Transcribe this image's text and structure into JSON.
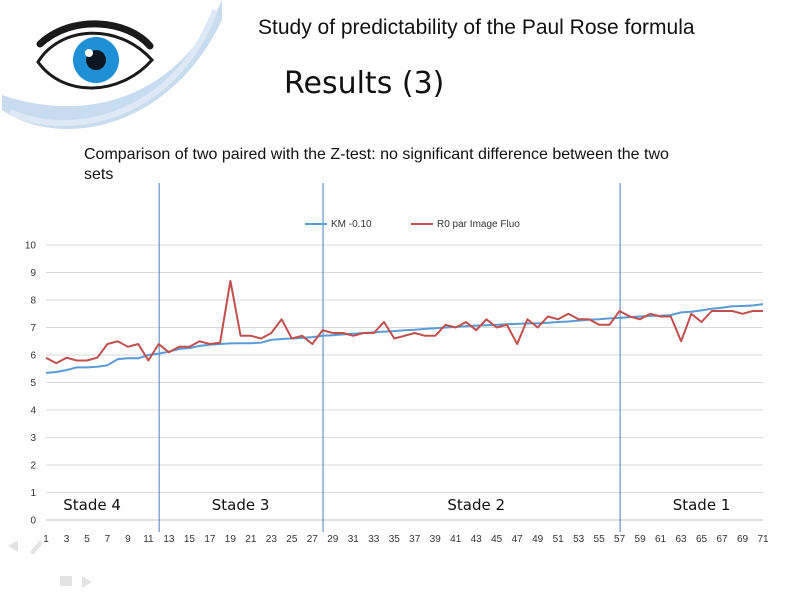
{
  "slide": {
    "header_title": "Study of predictability of the Paul Rose formula",
    "subtitle": "Results (3)",
    "comparison_text": "Comparison of two paired with the Z-test: no significant difference between the two sets"
  },
  "colors": {
    "series_km": "#5b9bd5",
    "series_r0": "#c0504d",
    "stage_divider": "#4a7ebb",
    "eye_iris": "#1f8fd6",
    "swoosh": "#c7dcef"
  },
  "icons": [
    "eye-logo-icon",
    "nav-prev-icon",
    "nav-pen-icon",
    "nav-menu-icon",
    "nav-next-icon"
  ],
  "chart_data": {
    "type": "line",
    "title": "",
    "xlabel": "",
    "ylabel": "",
    "ylim": [
      0,
      10
    ],
    "y_ticks": [
      0,
      1,
      2,
      3,
      4,
      5,
      6,
      7,
      8,
      9,
      10
    ],
    "x_range": [
      1,
      71
    ],
    "x_tick_labels": [
      1,
      3,
      5,
      7,
      9,
      11,
      13,
      15,
      17,
      19,
      21,
      23,
      25,
      27,
      29,
      31,
      33,
      35,
      37,
      39,
      41,
      43,
      45,
      47,
      49,
      51,
      53,
      55,
      57,
      59,
      61,
      63,
      65,
      67,
      69,
      71
    ],
    "grid": "horizontal",
    "legend_position": "top",
    "series": [
      {
        "name": "KM -0.10",
        "color": "#5b9bd5",
        "values": [
          5.35,
          5.38,
          5.45,
          5.55,
          5.55,
          5.57,
          5.63,
          5.85,
          5.88,
          5.88,
          6.0,
          6.05,
          6.12,
          6.22,
          6.25,
          6.33,
          6.37,
          6.4,
          6.42,
          6.43,
          6.43,
          6.45,
          6.55,
          6.58,
          6.6,
          6.62,
          6.65,
          6.7,
          6.72,
          6.75,
          6.77,
          6.8,
          6.82,
          6.85,
          6.87,
          6.9,
          6.92,
          6.95,
          6.97,
          7.0,
          7.02,
          7.05,
          7.07,
          7.08,
          7.1,
          7.12,
          7.13,
          7.15,
          7.15,
          7.17,
          7.2,
          7.22,
          7.25,
          7.28,
          7.3,
          7.33,
          7.35,
          7.38,
          7.4,
          7.42,
          7.43,
          7.45,
          7.55,
          7.57,
          7.62,
          7.68,
          7.72,
          7.77,
          7.78,
          7.8,
          7.85
        ]
      },
      {
        "name": "R0 par Image Fluo",
        "color": "#c0504d",
        "values": [
          5.9,
          5.7,
          5.9,
          5.8,
          5.8,
          5.9,
          6.4,
          6.5,
          6.3,
          6.4,
          5.8,
          6.4,
          6.1,
          6.3,
          6.3,
          6.5,
          6.4,
          6.45,
          8.7,
          6.7,
          6.7,
          6.6,
          6.8,
          7.3,
          6.6,
          6.7,
          6.4,
          6.9,
          6.8,
          6.8,
          6.7,
          6.8,
          6.8,
          7.2,
          6.6,
          6.7,
          6.8,
          6.7,
          6.7,
          7.1,
          7.0,
          7.2,
          6.9,
          7.3,
          7.0,
          7.1,
          6.4,
          7.3,
          7.0,
          7.4,
          7.3,
          7.5,
          7.3,
          7.3,
          7.1,
          7.1,
          7.6,
          7.4,
          7.3,
          7.5,
          7.4,
          7.4,
          6.5,
          7.5,
          7.2,
          7.6,
          7.6,
          7.6,
          7.5,
          7.6,
          7.6
        ]
      }
    ],
    "stage_dividers": [
      12,
      28,
      57
    ],
    "stages": [
      {
        "label": "Stade 4",
        "center_x": 5.5
      },
      {
        "label": "Stade 3",
        "center_x": 20
      },
      {
        "label": "Stade 2",
        "center_x": 43
      },
      {
        "label": "Stade 1",
        "center_x": 65
      }
    ]
  }
}
